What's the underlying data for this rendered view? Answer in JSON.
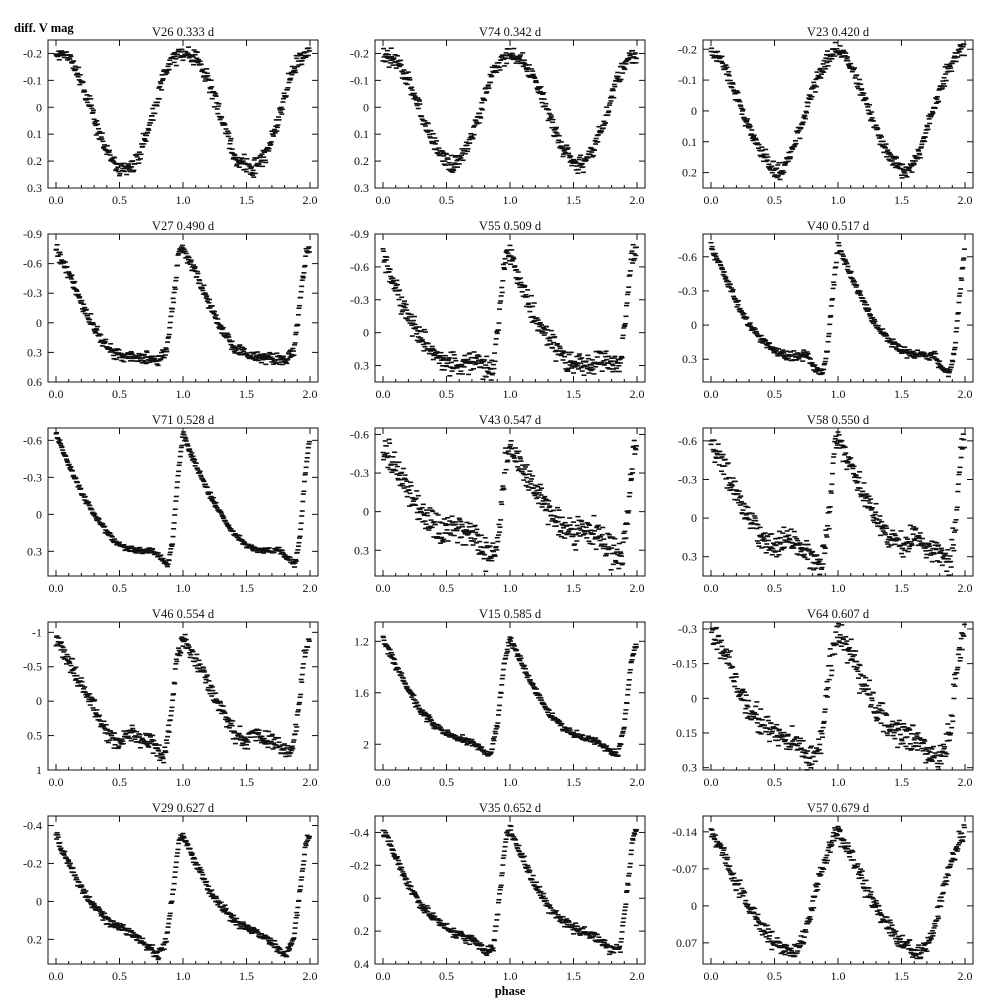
{
  "figure": {
    "ylabel": "diff. V mag",
    "xlabel": "phase"
  },
  "chart_data": {
    "type": "scatter",
    "x_range": [
      0,
      2
    ],
    "x_ticks": [
      "0.0",
      "0.5",
      "1.0",
      "1.5",
      "2.0"
    ],
    "panels": [
      {
        "star": "V26",
        "period": "0.333 d",
        "ylim": [
          -0.25,
          0.3
        ],
        "yticks": [
          -0.2,
          -0.1,
          0,
          0.1,
          0.2,
          0.3
        ],
        "ytick_labels": [
          "-0.2",
          "-0.1",
          "0",
          "0.1",
          "0.2",
          "0.3"
        ],
        "curve": [
          [
            0,
            -0.2
          ],
          [
            0.1,
            -0.19
          ],
          [
            0.2,
            -0.1
          ],
          [
            0.3,
            0.04
          ],
          [
            0.4,
            0.17
          ],
          [
            0.5,
            0.22
          ],
          [
            0.55,
            0.24
          ],
          [
            0.65,
            0.18
          ],
          [
            0.75,
            0.05
          ],
          [
            0.85,
            -0.12
          ],
          [
            0.92,
            -0.18
          ],
          [
            1.0,
            -0.21
          ]
        ],
        "noise": 0.015
      },
      {
        "star": "V74",
        "period": "0.342 d",
        "ylim": [
          -0.25,
          0.3
        ],
        "yticks": [
          -0.2,
          -0.1,
          0,
          0.1,
          0.2,
          0.3
        ],
        "ytick_labels": [
          "-0.2",
          "-0.1",
          "0",
          "0.1",
          "0.2",
          "0.3"
        ],
        "curve": [
          [
            0,
            -0.2
          ],
          [
            0.1,
            -0.17
          ],
          [
            0.2,
            -0.1
          ],
          [
            0.3,
            0.02
          ],
          [
            0.4,
            0.14
          ],
          [
            0.5,
            0.2
          ],
          [
            0.55,
            0.22
          ],
          [
            0.65,
            0.16
          ],
          [
            0.75,
            0.04
          ],
          [
            0.85,
            -0.12
          ],
          [
            0.95,
            -0.19
          ],
          [
            1.0,
            -0.2
          ]
        ],
        "noise": 0.015
      },
      {
        "star": "V23",
        "period": "0.420 d",
        "ylim": [
          -0.23,
          0.25
        ],
        "yticks": [
          -0.2,
          -0.1,
          0,
          0.1,
          0.2
        ],
        "ytick_labels": [
          "-0.2",
          "-0.1",
          "0",
          "0.1",
          "0.2"
        ],
        "curve": [
          [
            0,
            -0.2
          ],
          [
            0.1,
            -0.15
          ],
          [
            0.2,
            -0.05
          ],
          [
            0.3,
            0.06
          ],
          [
            0.4,
            0.14
          ],
          [
            0.5,
            0.19
          ],
          [
            0.55,
            0.2
          ],
          [
            0.65,
            0.12
          ],
          [
            0.75,
            0.0
          ],
          [
            0.85,
            -0.12
          ],
          [
            0.95,
            -0.19
          ],
          [
            1.0,
            -0.2
          ]
        ],
        "noise": 0.012
      },
      {
        "star": "V27",
        "period": "0.490 d",
        "ylim": [
          -0.9,
          0.6
        ],
        "yticks": [
          -0.9,
          -0.6,
          -0.3,
          0,
          0.3,
          0.6
        ],
        "ytick_labels": [
          "-0.9",
          "-0.6",
          "-0.3",
          "0",
          "0.3",
          "0.6"
        ],
        "curve": [
          [
            0,
            -0.75
          ],
          [
            0.1,
            -0.5
          ],
          [
            0.2,
            -0.2
          ],
          [
            0.3,
            0.05
          ],
          [
            0.4,
            0.25
          ],
          [
            0.5,
            0.32
          ],
          [
            0.6,
            0.35
          ],
          [
            0.7,
            0.36
          ],
          [
            0.8,
            0.38
          ],
          [
            0.87,
            0.3
          ],
          [
            0.93,
            -0.3
          ],
          [
            0.97,
            -0.72
          ],
          [
            1.0,
            -0.75
          ]
        ],
        "noise": 0.03
      },
      {
        "star": "V55",
        "period": "0.509 d",
        "ylim": [
          -0.9,
          0.45
        ],
        "yticks": [
          -0.9,
          -0.6,
          -0.3,
          0,
          0.3
        ],
        "ytick_labels": [
          "-0.9",
          "-0.6",
          "-0.3",
          "0",
          "0.3"
        ],
        "curve": [
          [
            0,
            -0.7
          ],
          [
            0.1,
            -0.4
          ],
          [
            0.2,
            -0.15
          ],
          [
            0.3,
            0.05
          ],
          [
            0.4,
            0.2
          ],
          [
            0.5,
            0.28
          ],
          [
            0.6,
            0.3
          ],
          [
            0.7,
            0.25
          ],
          [
            0.8,
            0.32
          ],
          [
            0.87,
            0.3
          ],
          [
            0.92,
            -0.2
          ],
          [
            0.96,
            -0.7
          ],
          [
            1.0,
            -0.7
          ]
        ],
        "noise": 0.05
      },
      {
        "star": "V40",
        "period": "0.517 d",
        "ylim": [
          -0.8,
          0.5
        ],
        "yticks": [
          -0.6,
          -0.3,
          0,
          0.3
        ],
        "ytick_labels": [
          "-0.6",
          "-0.3",
          "0",
          "0.3"
        ],
        "curve": [
          [
            0,
            -0.7
          ],
          [
            0.1,
            -0.45
          ],
          [
            0.2,
            -0.2
          ],
          [
            0.3,
            0.0
          ],
          [
            0.4,
            0.12
          ],
          [
            0.5,
            0.22
          ],
          [
            0.6,
            0.26
          ],
          [
            0.7,
            0.28
          ],
          [
            0.75,
            0.25
          ],
          [
            0.82,
            0.38
          ],
          [
            0.88,
            0.42
          ],
          [
            0.92,
            0.2
          ],
          [
            0.96,
            -0.3
          ],
          [
            1.0,
            -0.7
          ]
        ],
        "noise": 0.02
      },
      {
        "star": "V71",
        "period": "0.528 d",
        "ylim": [
          -0.7,
          0.5
        ],
        "yticks": [
          -0.6,
          -0.3,
          0,
          0.3
        ],
        "ytick_labels": [
          "-0.6",
          "-0.3",
          "0",
          "0.3"
        ],
        "curve": [
          [
            0,
            -0.65
          ],
          [
            0.1,
            -0.4
          ],
          [
            0.2,
            -0.18
          ],
          [
            0.3,
            0.0
          ],
          [
            0.4,
            0.15
          ],
          [
            0.5,
            0.25
          ],
          [
            0.6,
            0.29
          ],
          [
            0.7,
            0.3
          ],
          [
            0.75,
            0.28
          ],
          [
            0.82,
            0.35
          ],
          [
            0.88,
            0.41
          ],
          [
            0.92,
            0.2
          ],
          [
            0.96,
            -0.3
          ],
          [
            1.0,
            -0.65
          ]
        ],
        "noise": 0.012
      },
      {
        "star": "V43",
        "period": "0.547 d",
        "ylim": [
          -0.65,
          0.5
        ],
        "yticks": [
          -0.6,
          -0.3,
          0,
          0.3
        ],
        "ytick_labels": [
          "-0.6",
          "-0.3",
          "0",
          "0.3"
        ],
        "curve": [
          [
            0,
            -0.5
          ],
          [
            0.1,
            -0.35
          ],
          [
            0.2,
            -0.15
          ],
          [
            0.3,
            0.0
          ],
          [
            0.4,
            0.12
          ],
          [
            0.5,
            0.15
          ],
          [
            0.6,
            0.12
          ],
          [
            0.7,
            0.2
          ],
          [
            0.8,
            0.3
          ],
          [
            0.88,
            0.35
          ],
          [
            0.93,
            0.0
          ],
          [
            0.97,
            -0.45
          ],
          [
            1.0,
            -0.52
          ]
        ],
        "noise": 0.06
      },
      {
        "star": "V58",
        "period": "0.550 d",
        "ylim": [
          -0.7,
          0.45
        ],
        "yticks": [
          -0.6,
          -0.3,
          0,
          0.3
        ],
        "ytick_labels": [
          "-0.6",
          "-0.3",
          "0",
          "0.3"
        ],
        "curve": [
          [
            0,
            -0.6
          ],
          [
            0.1,
            -0.4
          ],
          [
            0.2,
            -0.18
          ],
          [
            0.3,
            0.0
          ],
          [
            0.4,
            0.15
          ],
          [
            0.5,
            0.22
          ],
          [
            0.6,
            0.15
          ],
          [
            0.7,
            0.22
          ],
          [
            0.8,
            0.3
          ],
          [
            0.88,
            0.35
          ],
          [
            0.93,
            0.0
          ],
          [
            0.97,
            -0.55
          ],
          [
            1.0,
            -0.6
          ]
        ],
        "noise": 0.05
      },
      {
        "star": "V46",
        "period": "0.554 d",
        "ylim": [
          -1.15,
          1.0
        ],
        "yticks": [
          -1,
          -0.5,
          0,
          0.5,
          1
        ],
        "ytick_labels": [
          "-1",
          "-0.5",
          "0",
          "0.5",
          "1"
        ],
        "curve": [
          [
            0,
            -0.9
          ],
          [
            0.1,
            -0.6
          ],
          [
            0.2,
            -0.25
          ],
          [
            0.3,
            0.1
          ],
          [
            0.4,
            0.45
          ],
          [
            0.5,
            0.62
          ],
          [
            0.55,
            0.45
          ],
          [
            0.65,
            0.55
          ],
          [
            0.75,
            0.6
          ],
          [
            0.85,
            0.8
          ],
          [
            0.9,
            0.3
          ],
          [
            0.95,
            -0.6
          ],
          [
            1.0,
            -0.9
          ]
        ],
        "noise": 0.06
      },
      {
        "star": "V15",
        "period": "0.585 d",
        "ylim": [
          1.05,
          2.2
        ],
        "yticks": [
          1.2,
          1.6,
          2
        ],
        "ytick_labels": [
          "1.2",
          "1.6",
          "2"
        ],
        "curve": [
          [
            0,
            1.18
          ],
          [
            0.1,
            1.38
          ],
          [
            0.2,
            1.58
          ],
          [
            0.3,
            1.75
          ],
          [
            0.4,
            1.85
          ],
          [
            0.5,
            1.92
          ],
          [
            0.6,
            1.96
          ],
          [
            0.7,
            1.98
          ],
          [
            0.78,
            2.05
          ],
          [
            0.85,
            2.08
          ],
          [
            0.9,
            1.85
          ],
          [
            0.95,
            1.4
          ],
          [
            1.0,
            1.18
          ]
        ],
        "noise": 0.015
      },
      {
        "star": "V64",
        "period": "0.607 d",
        "ylim": [
          -0.33,
          0.31
        ],
        "yticks": [
          -0.3,
          -0.15,
          0,
          0.15,
          0.3
        ],
        "ytick_labels": [
          "-0.3",
          "-0.15",
          "0",
          "0.15",
          "0.3"
        ],
        "curve": [
          [
            0,
            -0.29
          ],
          [
            0.1,
            -0.2
          ],
          [
            0.2,
            -0.07
          ],
          [
            0.3,
            0.05
          ],
          [
            0.4,
            0.12
          ],
          [
            0.5,
            0.15
          ],
          [
            0.6,
            0.18
          ],
          [
            0.7,
            0.22
          ],
          [
            0.8,
            0.28
          ],
          [
            0.88,
            0.15
          ],
          [
            0.94,
            -0.15
          ],
          [
            1.0,
            -0.29
          ]
        ],
        "noise": 0.03
      },
      {
        "star": "V29",
        "period": "0.627 d",
        "ylim": [
          -0.45,
          0.33
        ],
        "yticks": [
          -0.4,
          -0.2,
          0,
          0.2
        ],
        "ytick_labels": [
          "-0.4",
          "-0.2",
          "0",
          "0.2"
        ],
        "curve": [
          [
            0,
            -0.35
          ],
          [
            0.1,
            -0.2
          ],
          [
            0.2,
            -0.07
          ],
          [
            0.3,
            0.03
          ],
          [
            0.4,
            0.1
          ],
          [
            0.5,
            0.14
          ],
          [
            0.6,
            0.17
          ],
          [
            0.7,
            0.22
          ],
          [
            0.8,
            0.29
          ],
          [
            0.87,
            0.2
          ],
          [
            0.93,
            -0.1
          ],
          [
            0.97,
            -0.33
          ],
          [
            1.0,
            -0.35
          ]
        ],
        "noise": 0.012
      },
      {
        "star": "V35",
        "period": "0.652 d",
        "ylim": [
          -0.5,
          0.4
        ],
        "yticks": [
          -0.4,
          -0.2,
          0,
          0.2,
          0.4
        ],
        "ytick_labels": [
          "-0.4",
          "-0.2",
          "0",
          "0.2",
          "0.4"
        ],
        "curve": [
          [
            0,
            -0.42
          ],
          [
            0.1,
            -0.25
          ],
          [
            0.2,
            -0.08
          ],
          [
            0.3,
            0.05
          ],
          [
            0.4,
            0.12
          ],
          [
            0.5,
            0.18
          ],
          [
            0.6,
            0.22
          ],
          [
            0.7,
            0.25
          ],
          [
            0.8,
            0.32
          ],
          [
            0.87,
            0.3
          ],
          [
            0.93,
            -0.1
          ],
          [
            0.97,
            -0.38
          ],
          [
            1.0,
            -0.42
          ]
        ],
        "noise": 0.015
      },
      {
        "star": "V57",
        "period": "0.679 d",
        "ylim": [
          -0.17,
          0.11
        ],
        "yticks": [
          -0.14,
          -0.07,
          0,
          0.07
        ],
        "ytick_labels": [
          "-0.14",
          "-0.07",
          "0",
          "0.07"
        ],
        "curve": [
          [
            0,
            -0.14
          ],
          [
            0.1,
            -0.1
          ],
          [
            0.2,
            -0.04
          ],
          [
            0.3,
            0.0
          ],
          [
            0.4,
            0.04
          ],
          [
            0.5,
            0.07
          ],
          [
            0.6,
            0.085
          ],
          [
            0.65,
            0.09
          ],
          [
            0.75,
            0.05
          ],
          [
            0.85,
            -0.05
          ],
          [
            0.95,
            -0.12
          ],
          [
            1.0,
            -0.14
          ]
        ],
        "noise": 0.008
      }
    ]
  }
}
